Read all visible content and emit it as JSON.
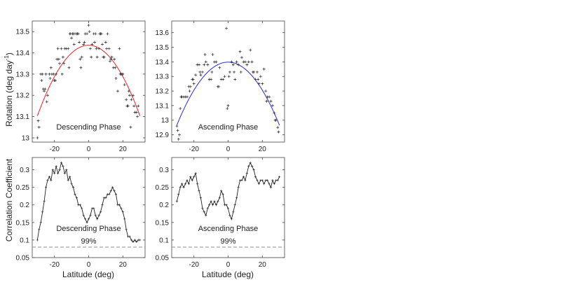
{
  "figure": {
    "ylabel_top": "Rotation (deg day",
    "ylabel_top_sup": "-1",
    "ylabel_top_close": ")",
    "ylabel_bottom": "Correlation Coefficient",
    "xlabel": "Latitude (deg)",
    "colors": {
      "fit_descending": "#e8272a",
      "fit_ascending": "#2a2ae8",
      "points": "#222222",
      "threshold": "#8c8c8c"
    }
  },
  "chart_data": [
    {
      "id": "rot-desc",
      "type": "scatter",
      "annotation": "Descending Phase",
      "xlim": [
        -33,
        33
      ],
      "ylim": [
        12.98,
        13.55
      ],
      "xticks": [
        -20,
        0,
        20
      ],
      "yticks": [
        13,
        13.1,
        13.2,
        13.3,
        13.4,
        13.5
      ],
      "ytick_labels": [
        "13",
        "13.1",
        "13.2",
        "13.3",
        "13.4",
        "13.5"
      ],
      "fit": {
        "type": "quadratic",
        "a": 13.436,
        "b": 0.0,
        "c": -0.00037,
        "x_range": [
          -30,
          30
        ],
        "color": "#e8272a"
      },
      "points": [
        [
          -30,
          13.0
        ],
        [
          -29.5,
          13.08
        ],
        [
          -29,
          13.05
        ],
        [
          -28,
          13.3
        ],
        [
          -27.5,
          13.27
        ],
        [
          -27,
          13.3
        ],
        [
          -26.5,
          13.23
        ],
        [
          -26,
          13.22
        ],
        [
          -25.5,
          13.23
        ],
        [
          -25,
          13.3
        ],
        [
          -24.5,
          13.17
        ],
        [
          -24,
          13.2
        ],
        [
          -23,
          13.3
        ],
        [
          -22.5,
          13.28
        ],
        [
          -22,
          13.33
        ],
        [
          -21.5,
          13.3
        ],
        [
          -20.5,
          13.3
        ],
        [
          -20,
          13.27
        ],
        [
          -19.5,
          13.27
        ],
        [
          -19,
          13.3
        ],
        [
          -18.5,
          13.37
        ],
        [
          -18,
          13.42
        ],
        [
          -17.5,
          13.37
        ],
        [
          -17,
          13.35
        ],
        [
          -16,
          13.42
        ],
        [
          -15.5,
          13.3
        ],
        [
          -15,
          13.38
        ],
        [
          -14.5,
          13.35
        ],
        [
          -14,
          13.42
        ],
        [
          -13,
          13.42
        ],
        [
          -12,
          13.42
        ],
        [
          -11.5,
          13.33
        ],
        [
          -11,
          13.49
        ],
        [
          -10.5,
          13.49
        ],
        [
          -10,
          13.47
        ],
        [
          -9.5,
          13.49
        ],
        [
          -9,
          13.49
        ],
        [
          -8.5,
          13.44
        ],
        [
          -8,
          13.49
        ],
        [
          -7,
          13.49
        ],
        [
          -6.5,
          13.49
        ],
        [
          -6,
          13.49
        ],
        [
          -5.5,
          13.45
        ],
        [
          -5,
          13.37
        ],
        [
          -4.5,
          13.33
        ],
        [
          -4,
          13.38
        ],
        [
          -3,
          13.44
        ],
        [
          -2.5,
          13.45
        ],
        [
          -2,
          13.49
        ],
        [
          -1,
          13.49
        ],
        [
          0,
          13.53
        ],
        [
          0.5,
          13.5
        ],
        [
          1,
          13.42
        ],
        [
          1.5,
          13.38
        ],
        [
          2,
          13.44
        ],
        [
          3,
          13.49
        ],
        [
          3.5,
          13.45
        ],
        [
          4,
          13.49
        ],
        [
          4.5,
          13.42
        ],
        [
          5,
          13.38
        ],
        [
          6,
          13.42
        ],
        [
          6.5,
          13.49
        ],
        [
          7,
          13.49
        ],
        [
          7.5,
          13.49
        ],
        [
          8,
          13.44
        ],
        [
          8.5,
          13.38
        ],
        [
          9,
          13.38
        ],
        [
          10,
          13.45
        ],
        [
          10.5,
          13.42
        ],
        [
          11,
          13.49
        ],
        [
          12,
          13.42
        ],
        [
          12.5,
          13.36
        ],
        [
          13,
          13.37
        ],
        [
          13.5,
          13.38
        ],
        [
          14.5,
          13.33
        ],
        [
          15,
          13.37
        ],
        [
          15.5,
          13.33
        ],
        [
          16,
          13.28
        ],
        [
          17,
          13.22
        ],
        [
          18,
          13.42
        ],
        [
          18.5,
          13.3
        ],
        [
          19,
          13.3
        ],
        [
          19.5,
          13.3
        ],
        [
          20,
          13.3
        ],
        [
          21,
          13.25
        ],
        [
          22,
          13.18
        ],
        [
          22.5,
          13.15
        ],
        [
          23,
          13.15
        ],
        [
          23.5,
          13.22
        ],
        [
          24,
          13.2
        ],
        [
          24.5,
          13.05
        ],
        [
          25,
          13.18
        ],
        [
          26,
          13.2
        ],
        [
          26.5,
          13.15
        ],
        [
          27,
          13.12
        ],
        [
          28,
          13.12
        ],
        [
          28.5,
          13.1
        ],
        [
          29,
          13.15
        ]
      ]
    },
    {
      "id": "rot-asc",
      "type": "scatter",
      "annotation": "Ascending Phase",
      "xlim": [
        -33,
        33
      ],
      "ylim": [
        12.85,
        13.68
      ],
      "xticks": [
        -20,
        0,
        20
      ],
      "yticks": [
        12.9,
        13,
        13.1,
        13.2,
        13.3,
        13.4,
        13.5,
        13.6
      ],
      "ytick_labels": [
        "12.9",
        "13",
        "13.1",
        "13.2",
        "13.3",
        "13.4",
        "13.5",
        "13.6"
      ],
      "fit": {
        "type": "quadratic",
        "a": 13.398,
        "b": 0.0,
        "c": -0.00048,
        "x_range": [
          -30,
          30
        ],
        "color": "#2a2ae8"
      },
      "points": [
        [
          -30,
          12.96
        ],
        [
          -29.5,
          12.93
        ],
        [
          -29,
          12.87
        ],
        [
          -28.5,
          12.9
        ],
        [
          -28,
          13.08
        ],
        [
          -27.5,
          13.16
        ],
        [
          -27,
          13.16
        ],
        [
          -26,
          13.16
        ],
        [
          -25,
          13.16
        ],
        [
          -24,
          13.16
        ],
        [
          -23,
          13.23
        ],
        [
          -22.5,
          13.2
        ],
        [
          -22,
          13.23
        ],
        [
          -21,
          13.28
        ],
        [
          -20.5,
          13.28
        ],
        [
          -20,
          13.25
        ],
        [
          -19,
          13.31
        ],
        [
          -18,
          13.38
        ],
        [
          -17,
          13.38
        ],
        [
          -16.5,
          13.33
        ],
        [
          -16,
          13.31
        ],
        [
          -15,
          13.33
        ],
        [
          -14,
          13.38
        ],
        [
          -13.5,
          13.45
        ],
        [
          -13,
          13.4
        ],
        [
          -12,
          13.38
        ],
        [
          -11,
          13.28
        ],
        [
          -10,
          13.28
        ],
        [
          -9.5,
          13.33
        ],
        [
          -9,
          13.45
        ],
        [
          -8,
          13.4
        ],
        [
          -7,
          13.4
        ],
        [
          -6,
          13.23
        ],
        [
          -5.5,
          13.23
        ],
        [
          -5,
          13.36
        ],
        [
          -4,
          13.28
        ],
        [
          -3,
          13.28
        ],
        [
          -2,
          13.3
        ],
        [
          -1,
          13.63
        ],
        [
          -0.5,
          13.08
        ],
        [
          0,
          13.1
        ],
        [
          0.5,
          13.3
        ],
        [
          1,
          13.33
        ],
        [
          2,
          13.4
        ],
        [
          3,
          13.38
        ],
        [
          3.5,
          13.33
        ],
        [
          4,
          13.28
        ],
        [
          5,
          13.4
        ],
        [
          6,
          13.38
        ],
        [
          7,
          13.47
        ],
        [
          7.5,
          13.33
        ],
        [
          8,
          13.43
        ],
        [
          9,
          13.4
        ],
        [
          10,
          13.4
        ],
        [
          11,
          13.38
        ],
        [
          12,
          13.4
        ],
        [
          13,
          13.48
        ],
        [
          14,
          13.4
        ],
        [
          14.5,
          13.33
        ],
        [
          15,
          13.33
        ],
        [
          16,
          13.28
        ],
        [
          17,
          13.33
        ],
        [
          17.5,
          13.28
        ],
        [
          18,
          13.25
        ],
        [
          19,
          13.3
        ],
        [
          20,
          13.25
        ],
        [
          21,
          13.35
        ],
        [
          22,
          13.2
        ],
        [
          22.5,
          13.13
        ],
        [
          23,
          13.16
        ],
        [
          24,
          13.16
        ],
        [
          25,
          13.13
        ],
        [
          26,
          13.1
        ],
        [
          27,
          13.05
        ],
        [
          27.5,
          13.0
        ],
        [
          28,
          13.0
        ],
        [
          29,
          12.95
        ],
        [
          29.5,
          12.92
        ]
      ]
    },
    {
      "id": "corr-desc",
      "type": "line",
      "annotation": "Descending Phase",
      "threshold_label": "99%",
      "threshold": 0.08,
      "xlim": [
        -33,
        33
      ],
      "ylim": [
        0.05,
        0.335
      ],
      "xticks": [
        -20,
        0,
        20
      ],
      "yticks": [
        0.05,
        0.1,
        0.15,
        0.2,
        0.25,
        0.3
      ],
      "ytick_labels": [
        "0.05",
        "0.1",
        "0.15",
        "0.2",
        "0.25",
        "0.3"
      ],
      "x": [
        -30,
        -29,
        -28,
        -27,
        -26,
        -25,
        -24,
        -23,
        -22,
        -21,
        -20,
        -19,
        -18,
        -17,
        -16,
        -15,
        -14,
        -13,
        -12,
        -11,
        -10,
        -9,
        -8,
        -7,
        -6,
        -5,
        -4,
        -3,
        -2,
        -1,
        0,
        1,
        2,
        3,
        4,
        5,
        6,
        7,
        8,
        9,
        10,
        11,
        12,
        13,
        14,
        15,
        16,
        17,
        18,
        19,
        20,
        21,
        22,
        23,
        24,
        25,
        26,
        27,
        28,
        29,
        30
      ],
      "y": [
        0.1,
        0.13,
        0.15,
        0.18,
        0.21,
        0.25,
        0.27,
        0.28,
        0.27,
        0.3,
        0.29,
        0.31,
        0.29,
        0.3,
        0.32,
        0.31,
        0.29,
        0.3,
        0.27,
        0.28,
        0.26,
        0.25,
        0.23,
        0.22,
        0.2,
        0.2,
        0.19,
        0.17,
        0.16,
        0.15,
        0.16,
        0.17,
        0.19,
        0.19,
        0.17,
        0.16,
        0.17,
        0.18,
        0.2,
        0.22,
        0.22,
        0.23,
        0.23,
        0.24,
        0.25,
        0.24,
        0.23,
        0.2,
        0.2,
        0.19,
        0.18,
        0.16,
        0.13,
        0.11,
        0.11,
        0.1,
        0.095,
        0.1,
        0.095,
        0.1,
        0.1
      ]
    },
    {
      "id": "corr-asc",
      "type": "line",
      "annotation": "Ascending Phase",
      "threshold_label": "99%",
      "threshold": 0.08,
      "xlim": [
        -33,
        33
      ],
      "ylim": [
        0.05,
        0.335
      ],
      "xticks": [
        -20,
        0,
        20
      ],
      "yticks": [
        0.05,
        0.1,
        0.15,
        0.2,
        0.25,
        0.3
      ],
      "ytick_labels": [
        "0.05",
        "0.1",
        "0.15",
        "0.2",
        "0.25",
        "0.3"
      ],
      "x": [
        -30,
        -29,
        -28,
        -27,
        -26,
        -25,
        -24,
        -23,
        -22,
        -21,
        -20,
        -19,
        -18,
        -17,
        -16,
        -15,
        -14,
        -13,
        -12,
        -11,
        -10,
        -9,
        -8,
        -7,
        -6,
        -5,
        -4,
        -3,
        -2,
        -1,
        0,
        1,
        2,
        3,
        4,
        5,
        6,
        7,
        8,
        9,
        10,
        11,
        12,
        13,
        14,
        15,
        16,
        17,
        18,
        19,
        20,
        21,
        22,
        23,
        24,
        25,
        26,
        27,
        28,
        29,
        30
      ],
      "y": [
        0.21,
        0.23,
        0.25,
        0.26,
        0.25,
        0.26,
        0.27,
        0.26,
        0.28,
        0.27,
        0.28,
        0.29,
        0.26,
        0.24,
        0.22,
        0.19,
        0.18,
        0.17,
        0.19,
        0.2,
        0.21,
        0.2,
        0.21,
        0.2,
        0.21,
        0.22,
        0.24,
        0.23,
        0.2,
        0.2,
        0.19,
        0.17,
        0.16,
        0.18,
        0.2,
        0.22,
        0.25,
        0.27,
        0.27,
        0.28,
        0.27,
        0.29,
        0.31,
        0.32,
        0.31,
        0.3,
        0.28,
        0.27,
        0.26,
        0.27,
        0.27,
        0.26,
        0.27,
        0.27,
        0.26,
        0.25,
        0.27,
        0.26,
        0.27,
        0.27,
        0.28
      ]
    }
  ]
}
